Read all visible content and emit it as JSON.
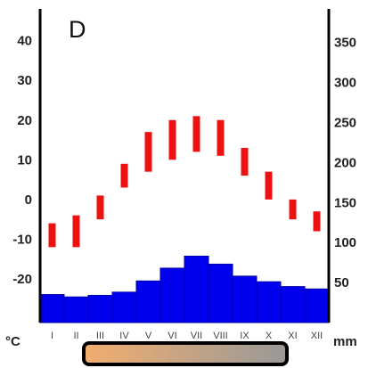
{
  "chart_data": {
    "type": "bar",
    "title": "D",
    "categories": [
      "I",
      "II",
      "III",
      "IV",
      "V",
      "VI",
      "VII",
      "VIII",
      "IX",
      "X",
      "XI",
      "XII"
    ],
    "temperature": {
      "unit_label": "°C",
      "ticks": [
        40,
        30,
        20,
        10,
        0,
        -10,
        -20
      ],
      "ylim": [
        -31,
        48
      ],
      "ranges": [
        [
          -12,
          -6
        ],
        [
          -12,
          -4
        ],
        [
          -5,
          1
        ],
        [
          3,
          9
        ],
        [
          7,
          17
        ],
        [
          10,
          20
        ],
        [
          12,
          21
        ],
        [
          11,
          20
        ],
        [
          6,
          13
        ],
        [
          0,
          7
        ],
        [
          -5,
          0
        ],
        [
          -8,
          -3
        ]
      ],
      "color": "#ee1111"
    },
    "precipitation": {
      "unit_label": "mm",
      "ticks": [
        350,
        300,
        250,
        200,
        150,
        100,
        50
      ],
      "ylim": [
        0,
        392
      ],
      "values": [
        35,
        32,
        34,
        38,
        52,
        68,
        83,
        73,
        58,
        51,
        45,
        42
      ],
      "color": "#0000ee"
    },
    "grid": false
  },
  "colors": {
    "legend_gradient_start": "#f2ae6e",
    "legend_gradient_end": "#999999",
    "axis": "#000000"
  }
}
